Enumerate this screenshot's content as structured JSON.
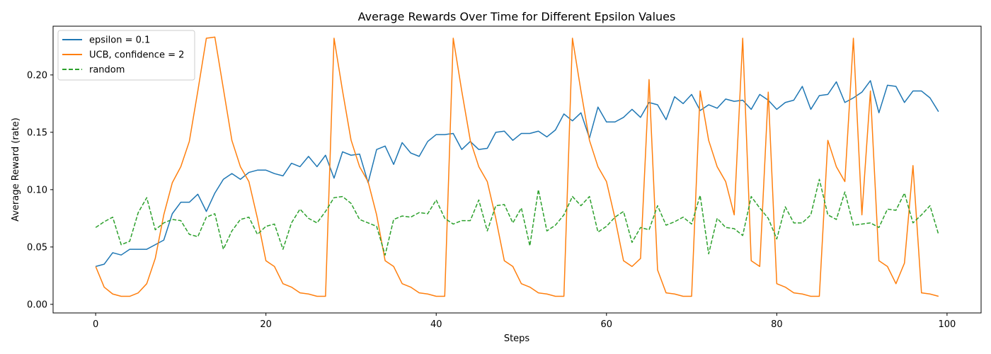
{
  "chart_data": {
    "type": "line",
    "title": "Average Rewards Over Time for Different Epsilon Values",
    "xlabel": "Steps",
    "ylabel": "Average Reward (rate)",
    "xlim": [
      -5,
      104
    ],
    "ylim": [
      -0.0075,
      0.2425
    ],
    "xticks": [
      0,
      20,
      40,
      60,
      80,
      100
    ],
    "yticks": [
      0.0,
      0.05,
      0.1,
      0.15,
      0.2
    ],
    "xtick_labels": [
      "0",
      "20",
      "40",
      "60",
      "80",
      "100"
    ],
    "ytick_labels": [
      "0.00",
      "0.05",
      "0.10",
      "0.15",
      "0.20"
    ],
    "grid": false,
    "legend_position": "upper left",
    "series": [
      {
        "name": "epsilon = 0.1",
        "color": "#1f77b4",
        "style": "solid",
        "values": [
          0.033,
          0.035,
          0.045,
          0.043,
          0.048,
          0.048,
          0.048,
          0.052,
          0.056,
          0.079,
          0.089,
          0.089,
          0.096,
          0.081,
          0.097,
          0.109,
          0.114,
          0.109,
          0.115,
          0.117,
          0.117,
          0.114,
          0.112,
          0.123,
          0.12,
          0.129,
          0.12,
          0.13,
          0.11,
          0.133,
          0.13,
          0.131,
          0.106,
          0.135,
          0.138,
          0.122,
          0.141,
          0.132,
          0.129,
          0.142,
          0.148,
          0.148,
          0.149,
          0.135,
          0.142,
          0.135,
          0.136,
          0.15,
          0.151,
          0.143,
          0.149,
          0.149,
          0.151,
          0.146,
          0.152,
          0.166,
          0.16,
          0.167,
          0.145,
          0.172,
          0.159,
          0.159,
          0.163,
          0.17,
          0.163,
          0.176,
          0.174,
          0.161,
          0.181,
          0.175,
          0.183,
          0.169,
          0.174,
          0.171,
          0.179,
          0.177,
          0.178,
          0.17,
          0.183,
          0.178,
          0.17,
          0.176,
          0.178,
          0.19,
          0.17,
          0.182,
          0.183,
          0.194,
          0.176,
          0.18,
          0.185,
          0.195,
          0.167,
          0.191,
          0.19,
          0.176,
          0.186,
          0.186,
          0.18,
          0.168
        ]
      },
      {
        "name": "UCB, confidence = 2",
        "color": "#ff7f0e",
        "style": "solid",
        "values": [
          0.033,
          0.015,
          0.009,
          0.007,
          0.007,
          0.01,
          0.018,
          0.04,
          0.078,
          0.106,
          0.12,
          0.142,
          0.186,
          0.232,
          0.233,
          0.188,
          0.143,
          0.12,
          0.107,
          0.075,
          0.038,
          0.033,
          0.018,
          0.015,
          0.01,
          0.009,
          0.007,
          0.007,
          0.232,
          0.186,
          0.143,
          0.12,
          0.107,
          0.078,
          0.038,
          0.033,
          0.018,
          0.015,
          0.01,
          0.009,
          0.007,
          0.007,
          0.232,
          0.186,
          0.143,
          0.12,
          0.107,
          0.075,
          0.038,
          0.033,
          0.018,
          0.015,
          0.01,
          0.009,
          0.007,
          0.007,
          0.232,
          0.186,
          0.143,
          0.12,
          0.107,
          0.075,
          0.038,
          0.033,
          0.04,
          0.196,
          0.03,
          0.01,
          0.009,
          0.007,
          0.007,
          0.186,
          0.143,
          0.12,
          0.107,
          0.078,
          0.232,
          0.038,
          0.033,
          0.185,
          0.018,
          0.015,
          0.01,
          0.009,
          0.007,
          0.007,
          0.143,
          0.12,
          0.107,
          0.232,
          0.078,
          0.186,
          0.038,
          0.033,
          0.018,
          0.036,
          0.121,
          0.01,
          0.009,
          0.007
        ]
      },
      {
        "name": "random",
        "color": "#2ca02c",
        "style": "dashed",
        "values": [
          0.067,
          0.072,
          0.076,
          0.052,
          0.055,
          0.08,
          0.093,
          0.065,
          0.071,
          0.074,
          0.073,
          0.061,
          0.059,
          0.076,
          0.079,
          0.048,
          0.064,
          0.074,
          0.076,
          0.061,
          0.068,
          0.07,
          0.048,
          0.071,
          0.083,
          0.075,
          0.071,
          0.081,
          0.093,
          0.094,
          0.088,
          0.074,
          0.071,
          0.068,
          0.043,
          0.074,
          0.077,
          0.076,
          0.08,
          0.079,
          0.091,
          0.075,
          0.07,
          0.073,
          0.073,
          0.091,
          0.064,
          0.086,
          0.087,
          0.071,
          0.084,
          0.051,
          0.1,
          0.064,
          0.069,
          0.078,
          0.094,
          0.086,
          0.094,
          0.063,
          0.068,
          0.076,
          0.081,
          0.054,
          0.067,
          0.065,
          0.086,
          0.069,
          0.072,
          0.076,
          0.07,
          0.095,
          0.044,
          0.075,
          0.067,
          0.066,
          0.06,
          0.094,
          0.084,
          0.075,
          0.057,
          0.085,
          0.071,
          0.071,
          0.078,
          0.109,
          0.078,
          0.074,
          0.098,
          0.069,
          0.07,
          0.071,
          0.067,
          0.083,
          0.082,
          0.097,
          0.071,
          0.078,
          0.086,
          0.061
        ]
      }
    ]
  }
}
